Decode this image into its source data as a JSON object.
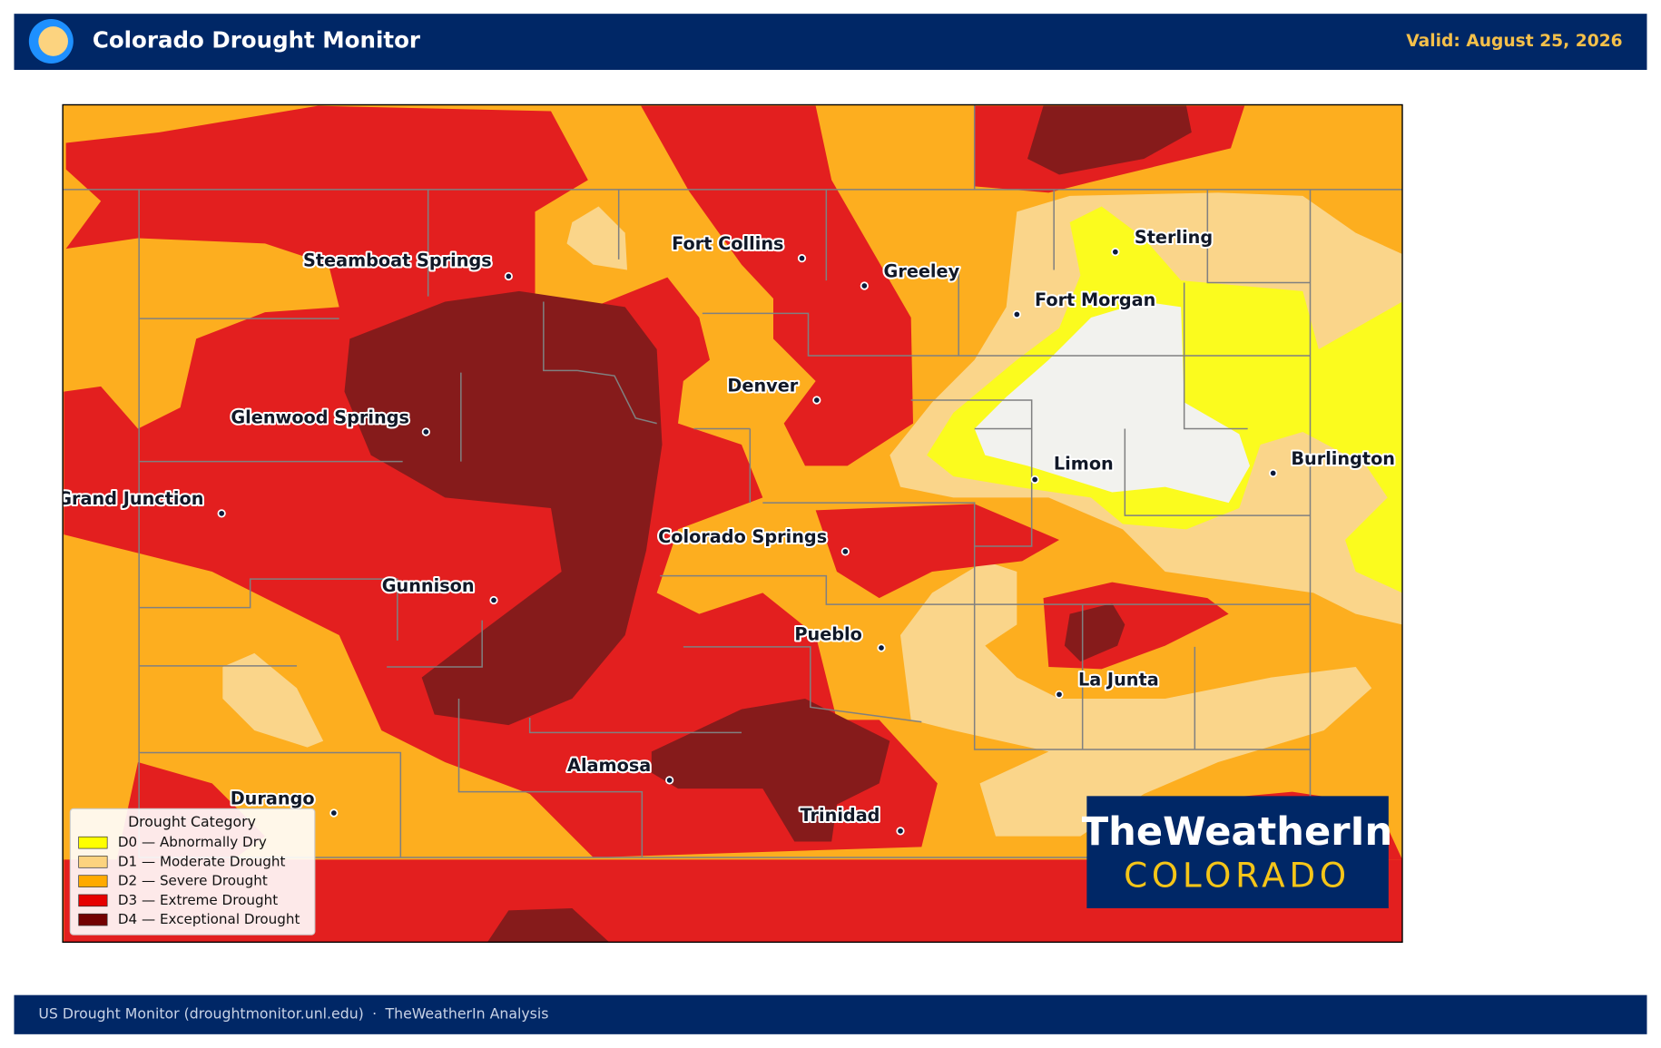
{
  "header": {
    "title": "Colorado Drought Monitor",
    "valid": "Valid: August 25, 2026"
  },
  "map": {
    "cities": [
      "Steamboat Springs",
      "Fort Collins",
      "Greeley",
      "Sterling",
      "Fort Morgan",
      "Denver",
      "Glenwood Springs",
      "Limon",
      "Burlington",
      "Grand Junction",
      "Colorado Springs",
      "Gunnison",
      "Pueblo",
      "La Junta",
      "Alamosa",
      "Durango",
      "Trinidad"
    ]
  },
  "legend": {
    "title": "Drought Category",
    "items": [
      {
        "label": "D0 — Abnormally Dry",
        "color": "#ffff00"
      },
      {
        "label": "D1 — Moderate Drought",
        "color": "#fcd37f"
      },
      {
        "label": "D2 — Severe Drought",
        "color": "#ffaa00"
      },
      {
        "label": "D3 — Extreme Drought",
        "color": "#e60000"
      },
      {
        "label": "D4 — Exceptional Drought",
        "color": "#730000"
      }
    ]
  },
  "logo": {
    "line1": "TheWeatherIn",
    "line2": "COLORADO"
  },
  "footer": {
    "source": "US Drought Monitor (droughtmonitor.unl.edu)",
    "separator": "·",
    "credit": "TheWeatherIn Analysis"
  }
}
